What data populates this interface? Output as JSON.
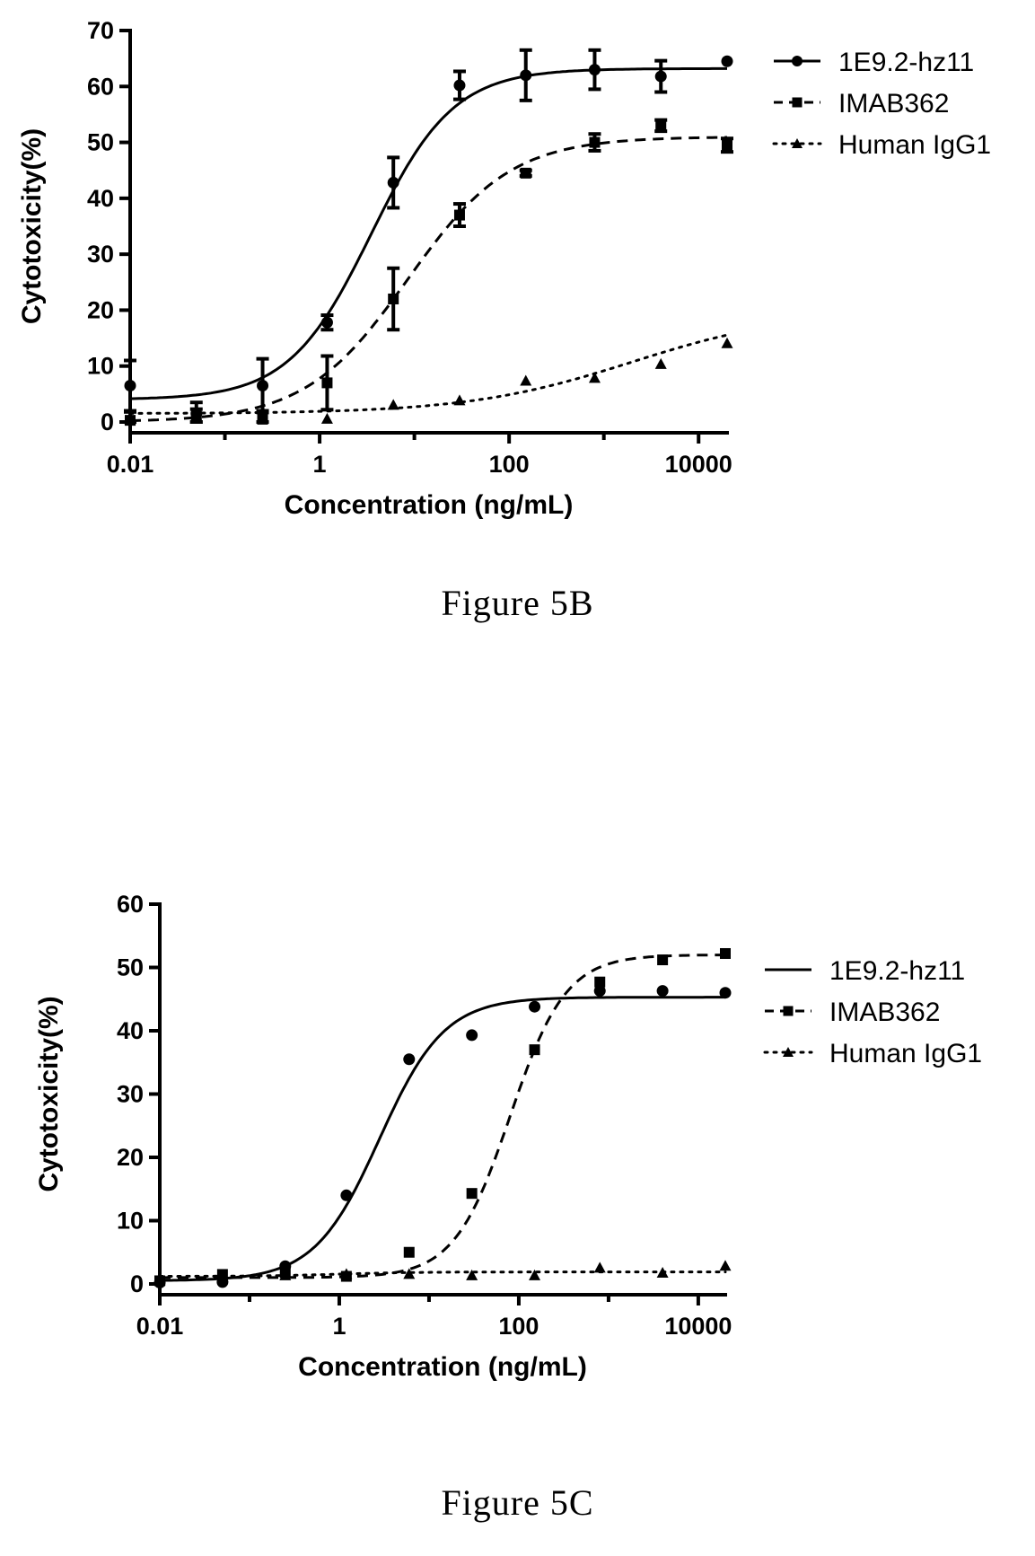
{
  "chart_data": [
    {
      "type": "line",
      "caption": "Figure 5B",
      "xlabel": "Concentration (ng/mL)",
      "ylabel": "Cytotoxicity(%)",
      "x_scale": "log",
      "xlim": [
        0.01,
        20000
      ],
      "ylim": [
        0,
        70
      ],
      "x_ticks": [
        0.01,
        1,
        100,
        10000
      ],
      "x_tick_labels": [
        "0.01",
        "1",
        "100",
        "10000"
      ],
      "y_ticks": [
        0,
        10,
        20,
        30,
        40,
        50,
        60,
        70
      ],
      "y_tick_labels": [
        "0",
        "10",
        "20",
        "30",
        "40",
        "50",
        "60",
        "70"
      ],
      "x": [
        0.01,
        0.05,
        0.25,
        1.2,
        6,
        30,
        150,
        800,
        4000,
        20000
      ],
      "legend_position": "top-right",
      "series": [
        {
          "name": "1E9.2-hz11",
          "line": "solid",
          "marker": "circle",
          "values": [
            6.5,
            1.5,
            6.5,
            17.8,
            42.8,
            60.2,
            62,
            63,
            61.8,
            64.5
          ],
          "errors": [
            4.5,
            2,
            4.8,
            1.3,
            4.5,
            2.5,
            4.5,
            3.5,
            2.8,
            0
          ],
          "fit": {
            "bottom": 4,
            "top": 63.2,
            "ec50": 3.5,
            "hill": 1
          }
        },
        {
          "name": "IMAB362",
          "line": "dashed",
          "marker": "square",
          "values": [
            0.3,
            0.8,
            0.5,
            7,
            22,
            37,
            44.5,
            50,
            53,
            49.5
          ],
          "errors": [
            1.5,
            1.5,
            1.5,
            4.8,
            5.5,
            2,
            0.5,
            1.5,
            1,
            1.2
          ],
          "fit": {
            "bottom": 0,
            "top": 51,
            "ec50": 8.5,
            "hill": 0.8
          }
        },
        {
          "name": "Human IgG1",
          "line": "dotted",
          "marker": "triangle",
          "values": [
            0.3,
            1,
            1,
            0.5,
            3,
            3.8,
            7.3,
            7.8,
            10.3,
            14
          ],
          "errors": [
            0,
            0,
            0,
            0,
            0,
            0,
            0,
            0,
            0,
            0
          ],
          "fit": {
            "bottom": 1.5,
            "top": 20,
            "ec50": 2000,
            "hill": 0.5
          }
        }
      ]
    },
    {
      "type": "line",
      "caption": "Figure 5C",
      "xlabel": "Concentration (ng/mL)",
      "ylabel": "Cytotoxicity(%)",
      "x_scale": "log",
      "xlim": [
        0.01,
        20000
      ],
      "ylim": [
        0,
        60
      ],
      "x_ticks": [
        0.01,
        1,
        100,
        10000
      ],
      "x_tick_labels": [
        "0.01",
        "1",
        "100",
        "10000"
      ],
      "y_ticks": [
        0,
        10,
        20,
        30,
        40,
        50,
        60
      ],
      "y_tick_labels": [
        "0",
        "10",
        "20",
        "30",
        "40",
        "50",
        "60"
      ],
      "x": [
        0.01,
        0.05,
        0.25,
        1.2,
        6,
        30,
        150,
        800,
        4000,
        20000
      ],
      "legend_position": "top-right",
      "series": [
        {
          "name": "1E9.2-hz11",
          "line": "solid",
          "marker": "circle",
          "values": [
            0.2,
            0.3,
            2.8,
            14,
            35.5,
            39.3,
            43.8,
            46.3,
            46.3,
            46
          ],
          "fit": {
            "bottom": 0.5,
            "top": 45.3,
            "ec50": 2.8,
            "hill": 1.2
          }
        },
        {
          "name": "IMAB362",
          "line": "dashed",
          "marker": "square",
          "values": [
            0.5,
            1.5,
            1.8,
            1.2,
            5,
            14.3,
            37,
            47.7,
            51.2,
            52.2
          ],
          "errors": [
            0,
            0,
            0,
            0,
            0,
            0,
            0,
            0,
            0,
            0
          ],
          "fit": {
            "bottom": 1,
            "top": 52,
            "ec50": 80,
            "hill": 1.4
          }
        },
        {
          "name": "Human IgG1",
          "line": "dotted",
          "marker": "triangle",
          "values": [
            0.5,
            1,
            1.3,
            1.5,
            1.5,
            1.3,
            1.3,
            2.5,
            1.7,
            2.8
          ],
          "fit": {
            "bottom": 1.2,
            "top": 1.9,
            "ec50": 1,
            "hill": 1
          }
        }
      ]
    }
  ]
}
